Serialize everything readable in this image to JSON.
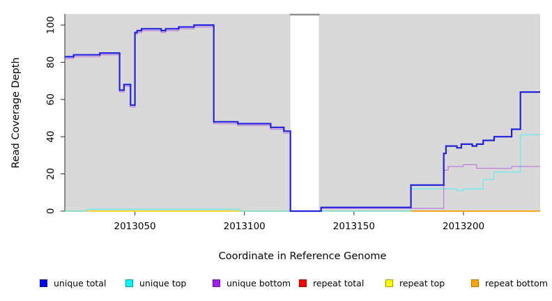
{
  "chart_data": {
    "type": "line",
    "subtype": "step",
    "title": "",
    "xlabel": "Coordinate in Reference Genome",
    "ylabel": "Read Coverage Depth",
    "x_ticks": [
      2013050,
      2013100,
      2013150,
      2013200
    ],
    "y_ticks": [
      0,
      20,
      40,
      60,
      80,
      100
    ],
    "x_range": [
      2013018,
      2013235
    ],
    "y_range": [
      0,
      106
    ],
    "grid": "off",
    "plot_bg": "#d9d9d9",
    "axis_color": "#2a2a2a",
    "no_data_region": {
      "x0": 2013121,
      "x1": 2013134,
      "fill": "#ffffff",
      "top_border": "#8f8f8f"
    },
    "baseline_artifact": {
      "color": "#94ce94",
      "y": 0,
      "x0": 2013018,
      "x1": 2013235
    },
    "series": [
      {
        "name": "repeat total",
        "color": "#ff0000",
        "width": 1.2,
        "steps": [
          [
            2013018,
            0
          ],
          [
            2013235,
            0
          ]
        ]
      },
      {
        "name": "repeat top",
        "color": "#ffff00",
        "width": 1.2,
        "steps": [
          [
            2013018,
            0
          ],
          [
            2013235,
            0
          ]
        ]
      },
      {
        "name": "repeat bottom",
        "color": "#ff9f00",
        "width": 1.6,
        "steps": [
          [
            2013028,
            0
          ],
          [
            2013098,
            null
          ],
          [
            2013175,
            0
          ],
          [
            2013235,
            0
          ]
        ]
      },
      {
        "name": "unique top",
        "color": "#76e9e9",
        "width": 1.4,
        "steps": [
          [
            2013018,
            0
          ],
          [
            2013028,
            1
          ],
          [
            2013098,
            0
          ],
          [
            2013176,
            12
          ],
          [
            2013197,
            11
          ],
          [
            2013200,
            12
          ],
          [
            2013209,
            17
          ],
          [
            2013214,
            21
          ],
          [
            2013226,
            41
          ],
          [
            2013235,
            41
          ]
        ]
      },
      {
        "name": "unique bottom",
        "color": "#bd85dd",
        "width": 1.4,
        "steps": [
          [
            2013018,
            82
          ],
          [
            2013022,
            83
          ],
          [
            2013034,
            84
          ],
          [
            2013043,
            64
          ],
          [
            2013045,
            67
          ],
          [
            2013048,
            56
          ],
          [
            2013050,
            95
          ],
          [
            2013051,
            96
          ],
          [
            2013053,
            97
          ],
          [
            2013062,
            96
          ],
          [
            2013064,
            97
          ],
          [
            2013070,
            98
          ],
          [
            2013077,
            99
          ],
          [
            2013086,
            47
          ],
          [
            2013097,
            46
          ],
          [
            2013112,
            44
          ],
          [
            2013118,
            42
          ],
          [
            2013121,
            0
          ],
          [
            2013135,
            1.5
          ],
          [
            2013191,
            22
          ],
          [
            2013193,
            24
          ],
          [
            2013200,
            25
          ],
          [
            2013206,
            23
          ],
          [
            2013222,
            24
          ],
          [
            2013235,
            24
          ]
        ]
      },
      {
        "name": "unique total",
        "color": "#2222dd",
        "width": 2.2,
        "steps": [
          [
            2013018,
            83
          ],
          [
            2013022,
            84
          ],
          [
            2013034,
            85
          ],
          [
            2013043,
            65
          ],
          [
            2013045,
            68
          ],
          [
            2013048,
            57
          ],
          [
            2013050,
            96
          ],
          [
            2013051,
            97
          ],
          [
            2013053,
            98
          ],
          [
            2013062,
            97
          ],
          [
            2013064,
            98
          ],
          [
            2013070,
            99
          ],
          [
            2013077,
            100
          ],
          [
            2013086,
            48
          ],
          [
            2013097,
            47
          ],
          [
            2013112,
            45
          ],
          [
            2013118,
            43
          ],
          [
            2013121,
            0
          ],
          [
            2013135,
            2
          ],
          [
            2013176,
            14
          ],
          [
            2013191,
            31
          ],
          [
            2013192,
            35
          ],
          [
            2013197,
            34
          ],
          [
            2013199,
            36
          ],
          [
            2013204,
            35
          ],
          [
            2013206,
            36
          ],
          [
            2013209,
            38
          ],
          [
            2013214,
            40
          ],
          [
            2013222,
            44
          ],
          [
            2013226,
            64
          ],
          [
            2013235,
            64
          ]
        ]
      }
    ],
    "legend_position": "bottom",
    "legend": [
      {
        "label": "unique total",
        "fill": "#0000ee",
        "border": "#000090"
      },
      {
        "label": "unique top",
        "fill": "#00ffff",
        "border": "#009f9f"
      },
      {
        "label": "unique bottom",
        "fill": "#a020f0",
        "border": "#6a12a5"
      },
      {
        "label": "repeat total",
        "fill": "#ff0000",
        "border": "#a00000"
      },
      {
        "label": "repeat top",
        "fill": "#ffff00",
        "border": "#9f9f00"
      },
      {
        "label": "repeat bottom",
        "fill": "#ffa500",
        "border": "#b07000"
      }
    ]
  }
}
